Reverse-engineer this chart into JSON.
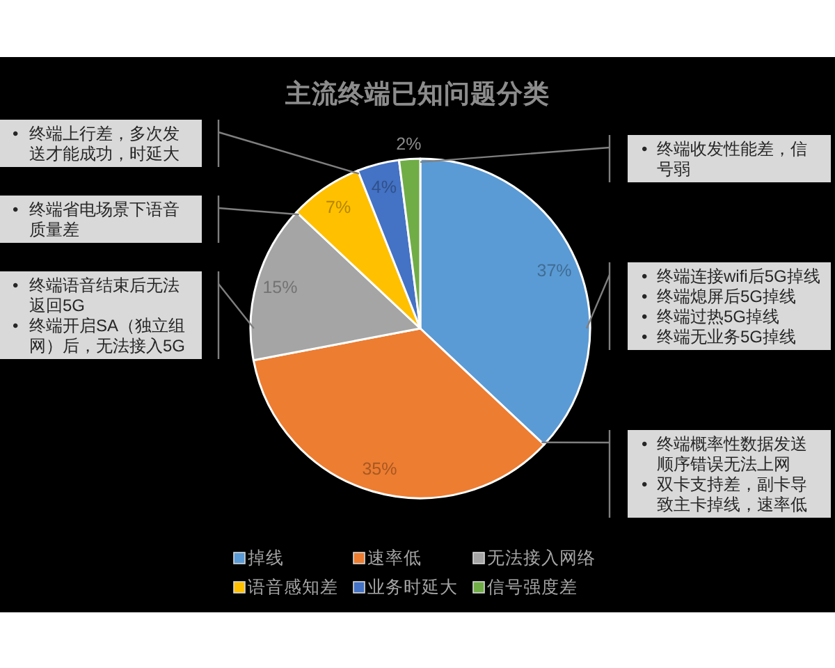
{
  "chart_data": {
    "type": "pie",
    "title": "主流终端已知问题分类",
    "categories": [
      "掉线",
      "速率低",
      "无法接入网络",
      "语音感知差",
      "业务时延大",
      "信号强度差"
    ],
    "values": [
      37,
      35,
      15,
      7,
      4,
      2
    ],
    "colors": [
      "#5b9bd5",
      "#ed7d31",
      "#a5a5a5",
      "#ffc000",
      "#4472c4",
      "#70ad47"
    ],
    "value_labels": [
      "37%",
      "35%",
      "15%",
      "7%",
      "4%",
      "2%"
    ],
    "legend": "bottom",
    "annotations": [
      {
        "text": "• 终端上行差，多次发送才能成功，时延大",
        "x": "业务时延大"
      },
      {
        "text": "• 终端省电场景下语音质量差",
        "x": "语音感知差"
      },
      {
        "text": "• 终端语音结束后无法返回5G\n• 终端开启SA（独立组网）后，无法接入5G",
        "x": "无法接入网络"
      },
      {
        "text": "• 终端收发性能差，信号弱",
        "x": "信号强度差"
      },
      {
        "text": "• 终端连接wifi后5G掉线\n• 终端熄屏后5G掉线\n• 终端过热5G掉线\n• 终端无业务5G掉线",
        "x": "掉线"
      },
      {
        "text": "• 终端概率性数据发送顺序错误无法上网\n• 双卡支持差，副卡导致主卡掉线，速率低",
        "x": "速率低"
      }
    ]
  }
}
